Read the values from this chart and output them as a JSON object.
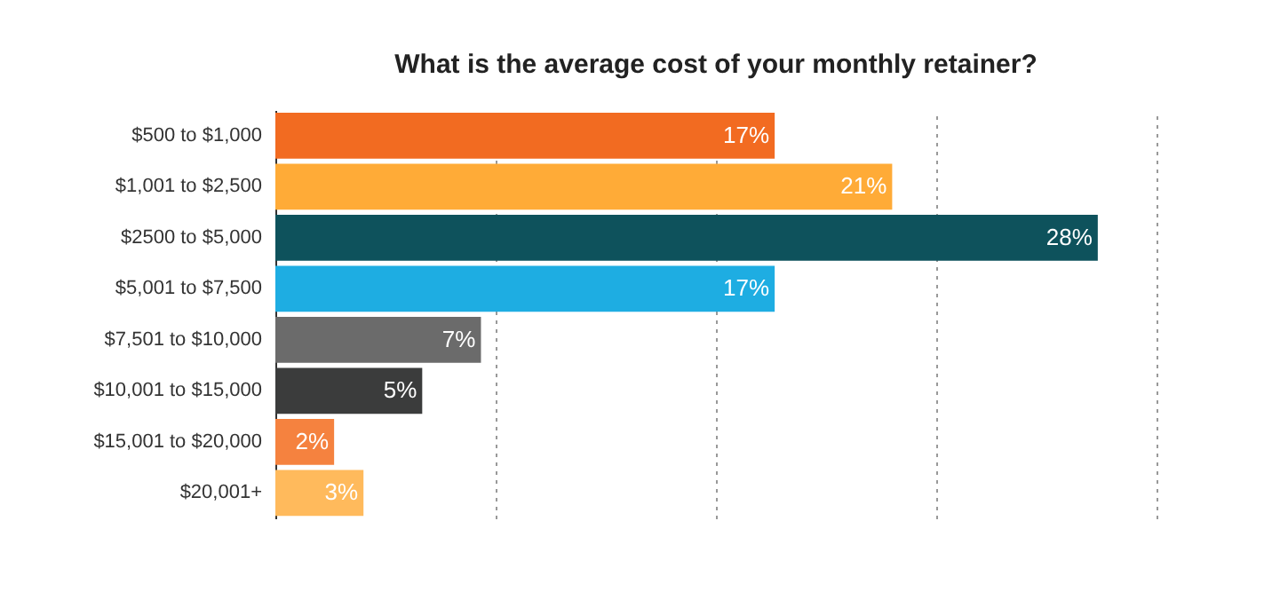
{
  "chart_data": {
    "type": "bar",
    "orientation": "horizontal",
    "title": "What is the average cost of your monthly retainer?",
    "categories": [
      "$500 to $1,000",
      "$1,001 to $2,500",
      "$2500 to $5,000",
      "$5,001 to $7,500",
      "$7,501 to $10,000",
      "$10,001 to $15,000",
      "$15,001 to $20,000",
      "$20,001+"
    ],
    "values": [
      17,
      21,
      28,
      17,
      7,
      5,
      2,
      3
    ],
    "value_labels": [
      "17%",
      "21%",
      "28%",
      "17%",
      "7%",
      "5%",
      "2%",
      "3%"
    ],
    "colors": [
      "#f26b21",
      "#ffab37",
      "#0e525c",
      "#1eade2",
      "#6b6b6b",
      "#3b3c3c",
      "#f5823f",
      "#ffba5c"
    ],
    "xlim": [
      0,
      30
    ],
    "xticks": [
      {
        "value": 0,
        "label": null
      },
      {
        "value": 7.5,
        "label": null
      },
      {
        "value": 15,
        "label": null
      },
      {
        "value": 22.5,
        "label": null
      },
      {
        "value": 30,
        "label": null
      }
    ],
    "grid": "x",
    "legend": false
  }
}
